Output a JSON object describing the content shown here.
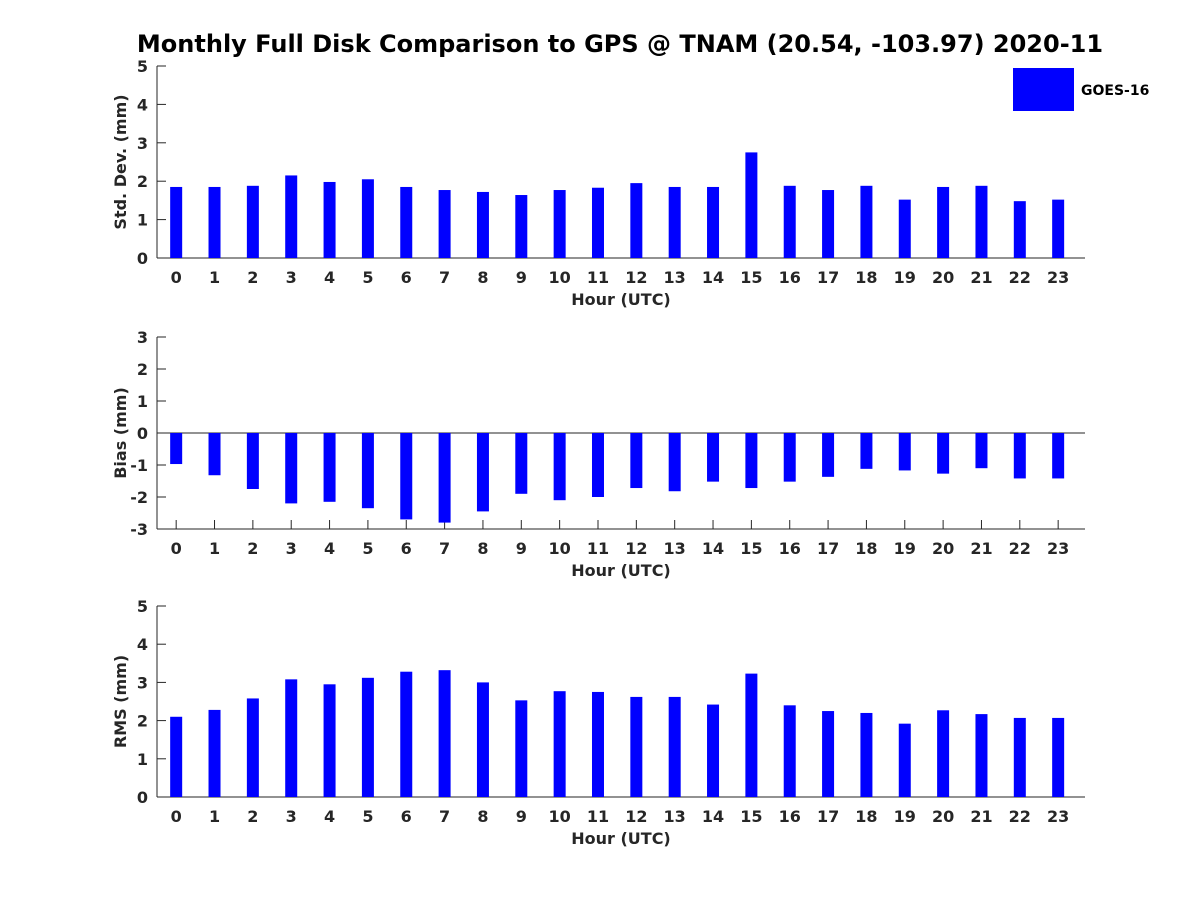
{
  "title": "Monthly Full Disk Comparison to GPS @ TNAM (20.54, -103.97) 2020-11",
  "legend": {
    "label": "GOES-16",
    "color": "#0000ff",
    "placement": "top-right"
  },
  "chart_data": [
    {
      "type": "bar",
      "xlabel": "Hour (UTC)",
      "ylabel": "Std. Dev. (mm)",
      "categories": [
        "0",
        "1",
        "2",
        "3",
        "4",
        "5",
        "6",
        "7",
        "8",
        "9",
        "10",
        "11",
        "12",
        "13",
        "14",
        "15",
        "16",
        "17",
        "18",
        "19",
        "20",
        "21",
        "22",
        "23"
      ],
      "series": [
        {
          "name": "GOES-16",
          "values": [
            1.85,
            1.85,
            1.88,
            2.15,
            1.98,
            2.05,
            1.85,
            1.77,
            1.72,
            1.64,
            1.77,
            1.83,
            1.95,
            1.85,
            1.85,
            2.75,
            1.88,
            1.77,
            1.88,
            1.52,
            1.85,
            1.88,
            1.48,
            1.52
          ]
        }
      ],
      "ylim": [
        0,
        5
      ],
      "yticks": [
        0,
        1,
        2,
        3,
        4,
        5
      ]
    },
    {
      "type": "bar",
      "xlabel": "Hour (UTC)",
      "ylabel": "Bias (mm)",
      "categories": [
        "0",
        "1",
        "2",
        "3",
        "4",
        "5",
        "6",
        "7",
        "8",
        "9",
        "10",
        "11",
        "12",
        "13",
        "14",
        "15",
        "16",
        "17",
        "18",
        "19",
        "20",
        "21",
        "22",
        "23"
      ],
      "series": [
        {
          "name": "GOES-16",
          "values": [
            -0.97,
            -1.32,
            -1.75,
            -2.2,
            -2.15,
            -2.35,
            -2.7,
            -2.8,
            -2.45,
            -1.9,
            -2.1,
            -2.0,
            -1.72,
            -1.82,
            -1.52,
            -1.72,
            -1.52,
            -1.37,
            -1.12,
            -1.17,
            -1.27,
            -1.1,
            -1.42,
            -1.42
          ]
        }
      ],
      "ylim": [
        -3,
        3
      ],
      "yticks": [
        -3,
        -2,
        -1,
        0,
        1,
        2,
        3
      ]
    },
    {
      "type": "bar",
      "xlabel": "Hour (UTC)",
      "ylabel": "RMS (mm)",
      "categories": [
        "0",
        "1",
        "2",
        "3",
        "4",
        "5",
        "6",
        "7",
        "8",
        "9",
        "10",
        "11",
        "12",
        "13",
        "14",
        "15",
        "16",
        "17",
        "18",
        "19",
        "20",
        "21",
        "22",
        "23"
      ],
      "series": [
        {
          "name": "GOES-16",
          "values": [
            2.1,
            2.28,
            2.58,
            3.08,
            2.95,
            3.12,
            3.28,
            3.32,
            3.0,
            2.53,
            2.77,
            2.75,
            2.62,
            2.62,
            2.42,
            3.23,
            2.4,
            2.25,
            2.2,
            1.92,
            2.27,
            2.17,
            2.07,
            2.07
          ]
        }
      ],
      "ylim": [
        0,
        5
      ],
      "yticks": [
        0,
        1,
        2,
        3,
        4,
        5
      ]
    }
  ]
}
